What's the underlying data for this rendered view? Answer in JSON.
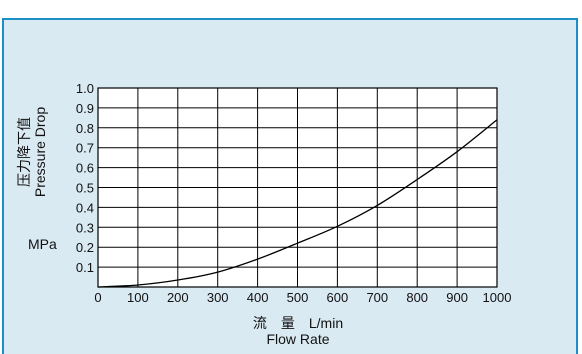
{
  "chart_data": {
    "type": "line",
    "title": "",
    "xlabel_cn": "流　量　L/min",
    "xlabel_en": "Flow Rate",
    "ylabel_cn": "压力降下值",
    "ylabel_en": "Pressure Drop",
    "yunit": "MPa",
    "xlim": [
      0,
      1000
    ],
    "ylim": [
      0,
      1.0
    ],
    "x_ticks": [
      "0",
      "100",
      "200",
      "300",
      "400",
      "500",
      "600",
      "700",
      "800",
      "900",
      "1000"
    ],
    "y_ticks": [
      "0.1",
      "0.2",
      "0.3",
      "0.4",
      "0.5",
      "0.6",
      "0.7",
      "0.8",
      "0.9",
      "1.0"
    ],
    "grid": true,
    "series": [
      {
        "x": [
          0,
          100,
          200,
          300,
          400,
          500,
          600,
          700,
          800,
          900,
          1000
        ],
        "y": [
          0,
          0.01,
          0.035,
          0.075,
          0.14,
          0.22,
          0.305,
          0.41,
          0.54,
          0.68,
          0.84
        ]
      }
    ]
  },
  "colors": {
    "panel_bg": "#daeaf3",
    "panel_border": "#1b8fc6",
    "plot_bg": "#ffffff",
    "line": "#000000"
  }
}
